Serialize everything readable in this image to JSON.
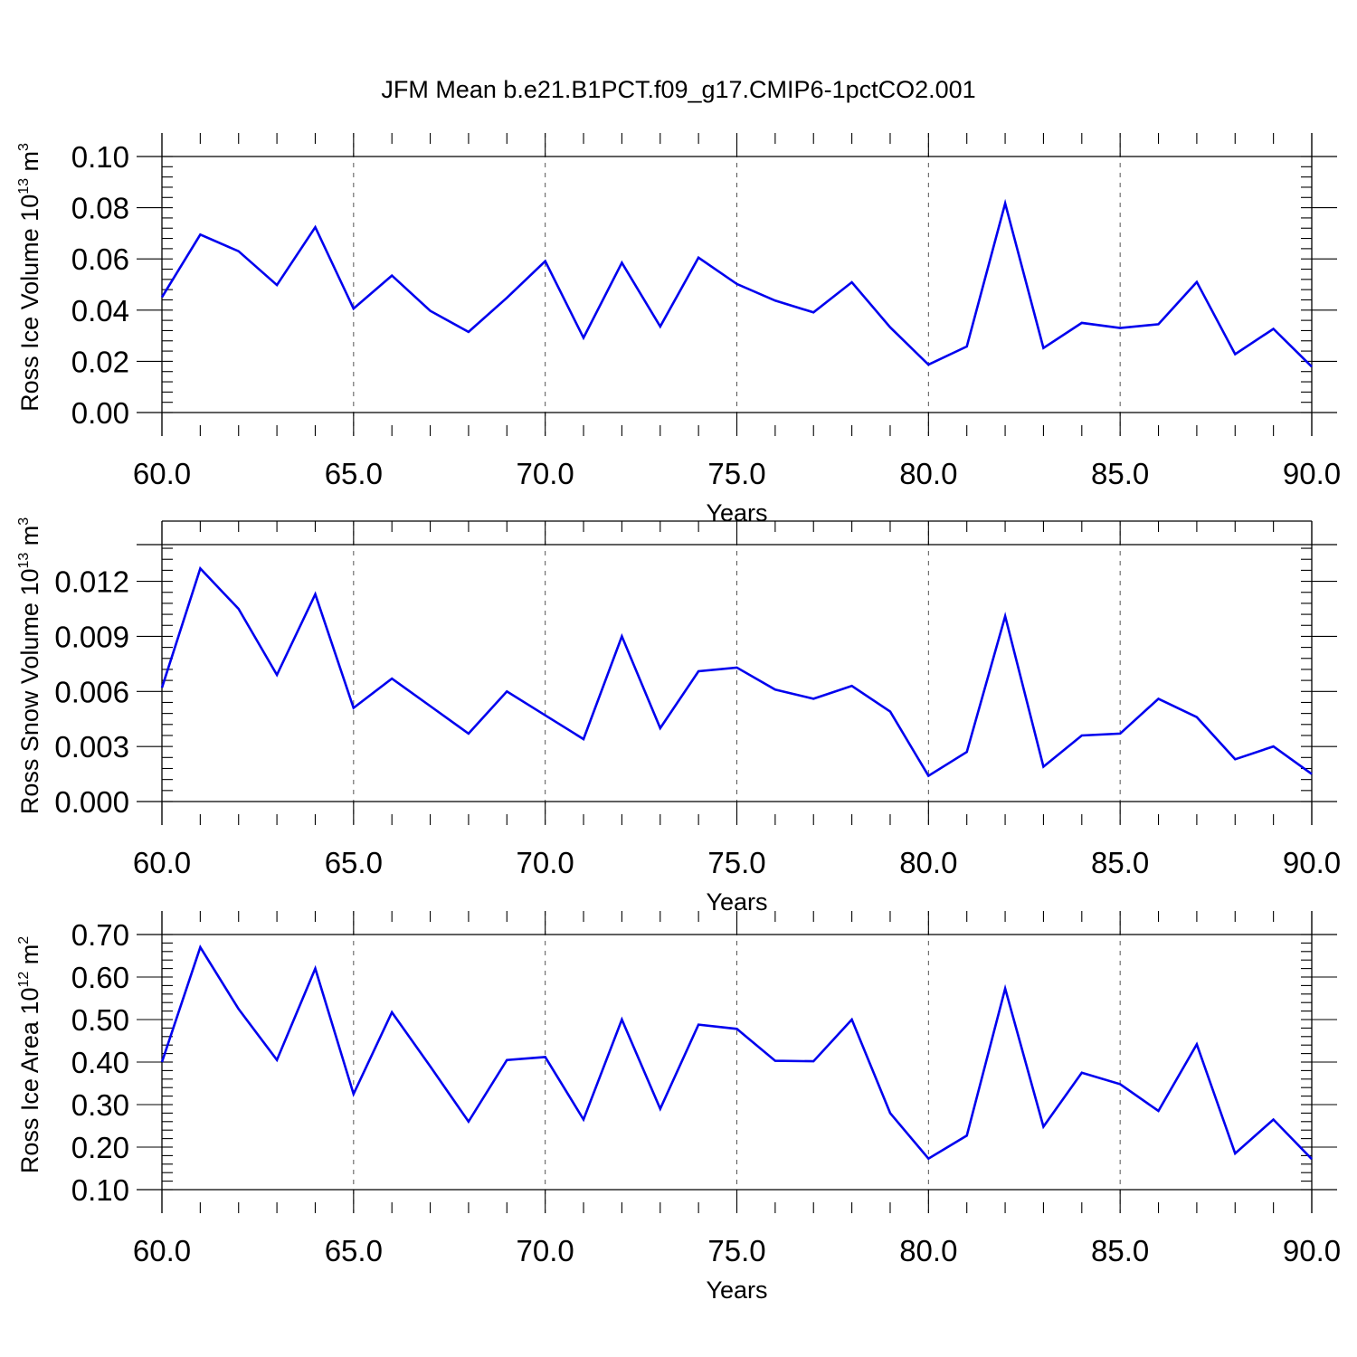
{
  "title": "JFM Mean b.e21.B1PCT.f09_g17.CMIP6-1pctCO2.001",
  "colors": {
    "line": "#0000ee",
    "axis": "#000000",
    "grid": "#555555"
  },
  "chart_data": [
    {
      "type": "line",
      "ylabel": "Ross Ice Volume 10",
      "ylabel_exponent": "13",
      "ylabel_unit": " m",
      "ylabel_unit_exponent": "3",
      "xlabel": "Years",
      "xlim": [
        60,
        90
      ],
      "ylim": [
        0,
        0.1
      ],
      "yticks": [
        "0.00",
        "0.02",
        "0.04",
        "0.06",
        "0.08",
        "0.10"
      ],
      "xticks": [
        "60.0",
        "65.0",
        "70.0",
        "75.0",
        "80.0",
        "85.0",
        "90.0"
      ],
      "x": [
        60,
        61,
        62,
        63,
        64,
        65,
        66,
        67,
        68,
        69,
        70,
        71,
        72,
        73,
        74,
        75,
        76,
        77,
        78,
        79,
        80,
        81,
        82,
        83,
        84,
        85,
        86,
        87,
        88,
        89,
        90
      ],
      "values": [
        0.045,
        0.0695,
        0.063,
        0.0498,
        0.0724,
        0.0406,
        0.0535,
        0.0397,
        0.0315,
        0.0448,
        0.0591,
        0.0292,
        0.0585,
        0.0336,
        0.0605,
        0.0502,
        0.0437,
        0.0391,
        0.0509,
        0.0333,
        0.0187,
        0.0258,
        0.0817,
        0.0252,
        0.035,
        0.033,
        0.0345,
        0.051,
        0.0228,
        0.0327,
        0.0179
      ]
    },
    {
      "type": "line",
      "ylabel": "Ross Snow Volume 10",
      "ylabel_exponent": "13",
      "ylabel_unit": " m",
      "ylabel_unit_exponent": "3",
      "xlabel": "Years",
      "xlim": [
        60,
        90
      ],
      "ylim": [
        0,
        0.014
      ],
      "yticks": [
        "0.000",
        "0.003",
        "0.006",
        "0.009",
        "0.012"
      ],
      "xticks": [
        "60.0",
        "65.0",
        "70.0",
        "75.0",
        "80.0",
        "85.0",
        "90.0"
      ],
      "x": [
        60,
        61,
        62,
        63,
        64,
        65,
        66,
        67,
        68,
        69,
        70,
        71,
        72,
        73,
        74,
        75,
        76,
        77,
        78,
        79,
        80,
        81,
        82,
        83,
        84,
        85,
        86,
        87,
        88,
        89,
        90
      ],
      "values": [
        0.0062,
        0.0127,
        0.0105,
        0.0069,
        0.0113,
        0.0051,
        0.0067,
        0.0052,
        0.0037,
        0.006,
        0.0047,
        0.0034,
        0.009,
        0.004,
        0.0071,
        0.0073,
        0.0061,
        0.0056,
        0.0063,
        0.0049,
        0.0014,
        0.0027,
        0.0101,
        0.0019,
        0.0036,
        0.0037,
        0.0056,
        0.0046,
        0.0023,
        0.003,
        0.0015
      ]
    },
    {
      "type": "line",
      "ylabel": "Ross Ice Area 10",
      "ylabel_exponent": "12",
      "ylabel_unit": " m",
      "ylabel_unit_exponent": "2",
      "xlabel": "Years",
      "xlim": [
        60,
        90
      ],
      "ylim": [
        0.1,
        0.7
      ],
      "yticks": [
        "0.10",
        "0.20",
        "0.30",
        "0.40",
        "0.50",
        "0.60",
        "0.70"
      ],
      "xticks": [
        "60.0",
        "65.0",
        "70.0",
        "75.0",
        "80.0",
        "85.0",
        "90.0"
      ],
      "x": [
        60,
        61,
        62,
        63,
        64,
        65,
        66,
        67,
        68,
        69,
        70,
        71,
        72,
        73,
        74,
        75,
        76,
        77,
        78,
        79,
        80,
        81,
        82,
        83,
        84,
        85,
        86,
        87,
        88,
        89,
        90
      ],
      "values": [
        0.4,
        0.67,
        0.525,
        0.405,
        0.62,
        0.325,
        0.517,
        0.39,
        0.26,
        0.405,
        0.412,
        0.265,
        0.5,
        0.29,
        0.488,
        0.478,
        0.403,
        0.402,
        0.5,
        0.28,
        0.173,
        0.227,
        0.573,
        0.248,
        0.375,
        0.348,
        0.285,
        0.442,
        0.185,
        0.265,
        0.172
      ]
    }
  ]
}
